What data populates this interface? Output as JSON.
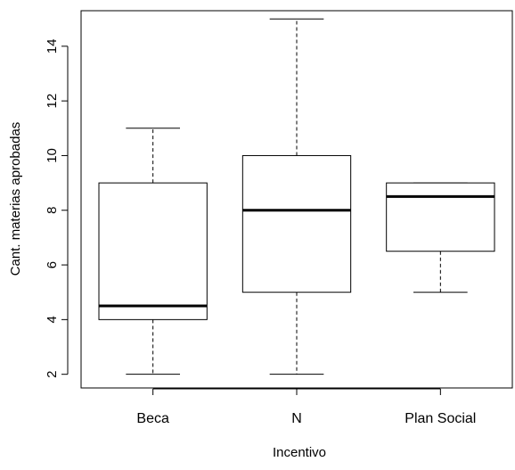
{
  "chart_data": {
    "type": "boxplot",
    "xlabel": "Incentivo",
    "ylabel": "Cant. materias aprobadas",
    "ylim": [
      1.5,
      15.3
    ],
    "y_ticks": [
      2,
      4,
      6,
      8,
      10,
      12,
      14
    ],
    "grid": false,
    "legend": "none",
    "categories": [
      "Beca",
      "N",
      "Plan Social"
    ],
    "boxes": [
      {
        "category": "Beca",
        "min": 2,
        "q1": 4,
        "median": 4.5,
        "q3": 9,
        "max": 11
      },
      {
        "category": "N",
        "min": 2,
        "q1": 5,
        "median": 8,
        "q3": 10,
        "max": 15
      },
      {
        "category": "Plan Social",
        "min": 5,
        "q1": 6.5,
        "median": 8.5,
        "q3": 9,
        "max": 9
      }
    ],
    "colors": {
      "box_fill": "#ffffff",
      "stroke": "#000000",
      "median": "#000000"
    }
  }
}
